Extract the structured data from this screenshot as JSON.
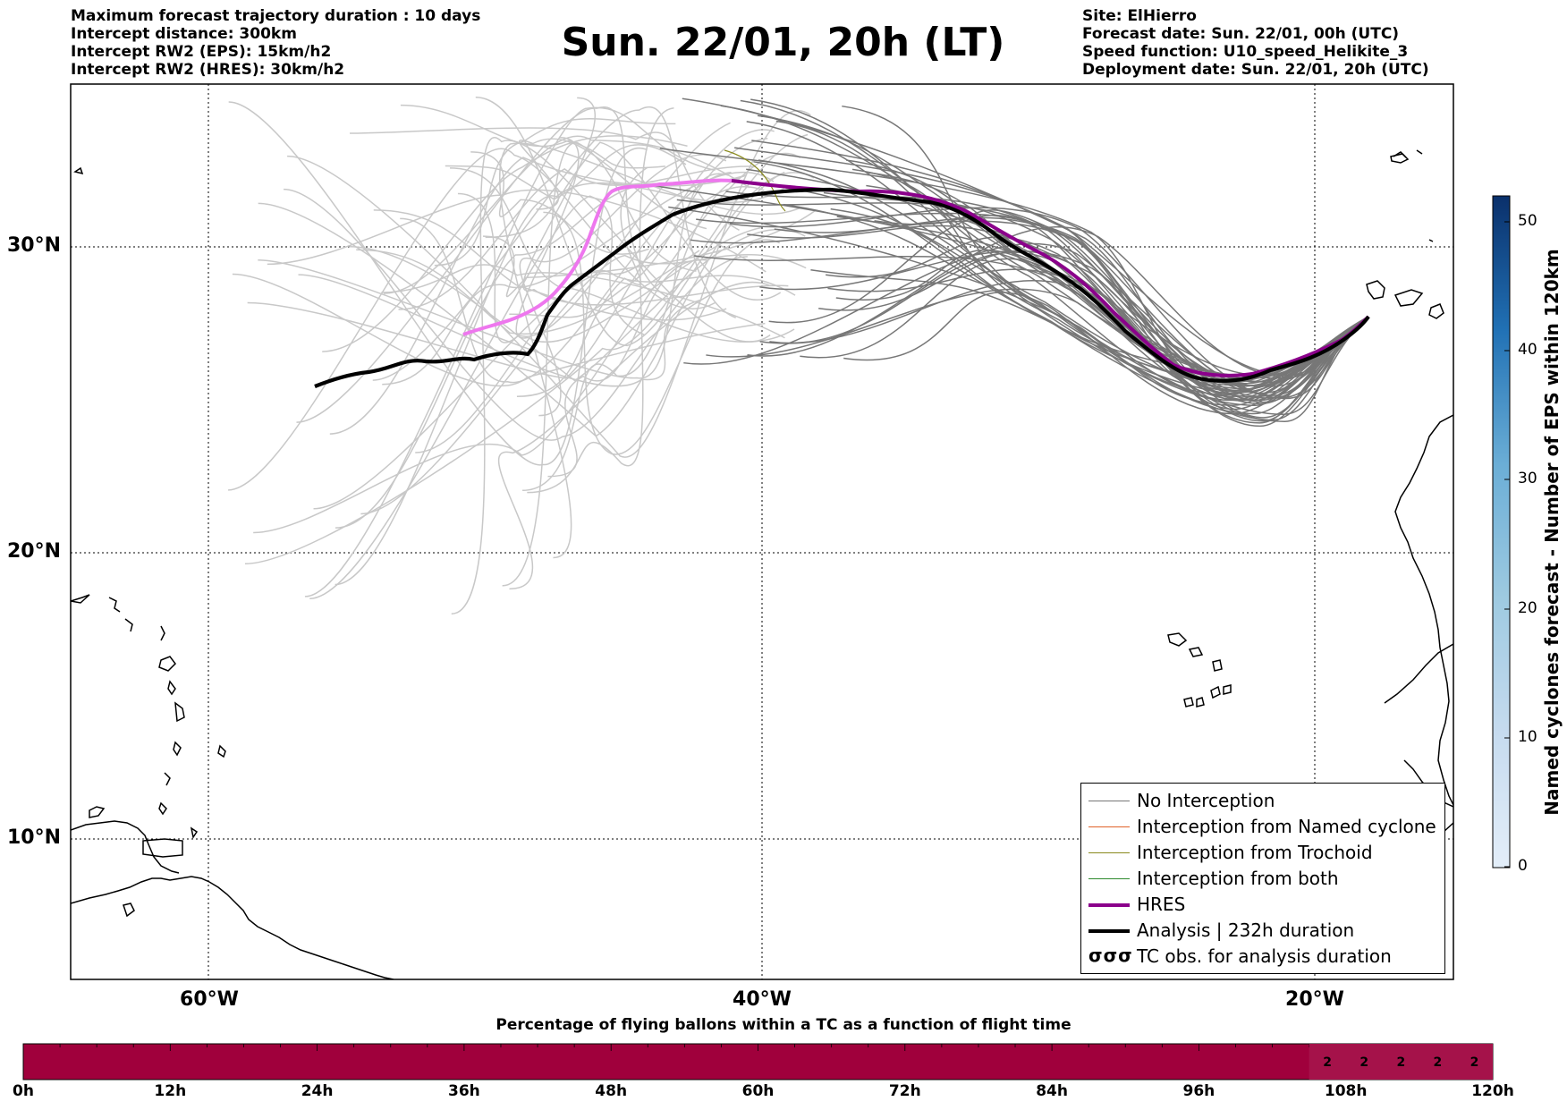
{
  "header": {
    "left_lines": [
      "Maximum forecast trajectory duration : 10 days",
      "Intercept distance: 300km",
      "Intercept RW2 (EPS):  15km/h2",
      "Intercept RW2 (HRES): 30km/h2"
    ],
    "title": "Sun. 22/01, 20h (LT)",
    "right_lines": [
      "Site: ElHierro",
      "Forecast date: Sun. 22/01, 00h (UTC)",
      "Speed function: U10_speed_Helikite_3",
      "Deployment date: Sun. 22/01, 20h (UTC)"
    ]
  },
  "map": {
    "lat_labels": [
      {
        "text": "30°N",
        "lat": 30
      },
      {
        "text": "20°N",
        "lat": 20
      },
      {
        "text": "10°N",
        "lat": 10
      }
    ],
    "lon_labels": [
      {
        "text": "60°W",
        "lon": -60
      },
      {
        "text": "40°W",
        "lon": -40
      },
      {
        "text": "20°W",
        "lon": -20
      }
    ],
    "extent": {
      "lon_min": -65,
      "lon_max": -15,
      "lat_min": 5.4,
      "lat_max": 34.7
    },
    "colors": {
      "no_interception": "#777777",
      "eps_faded": "#c8c8c8",
      "named_cyclone": "#e0622a",
      "trochoid": "#8a8a1e",
      "both": "#2e8b2e",
      "hres": "#8b008b",
      "hres_early": "#ee77ee",
      "analysis": "#000000"
    }
  },
  "legend": {
    "items": [
      {
        "label": "No Interception",
        "style": "thin-gray"
      },
      {
        "label": "Interception from Named cyclone",
        "style": "thin-orange"
      },
      {
        "label": "Interception from Trochoid",
        "style": "thin-olive"
      },
      {
        "label": "Interception from both",
        "style": "thin-green"
      },
      {
        "label": "HRES",
        "style": "thick-purple"
      },
      {
        "label": "Analysis | 232h duration",
        "style": "thick-black"
      },
      {
        "label": "TC obs. for analysis duration",
        "style": "cyclone-symbols"
      }
    ],
    "symbol_text": "σσσ"
  },
  "colorbar": {
    "label": "Named cyclones forecast - Number of EPS within 120km",
    "ticks": [
      "0",
      "10",
      "20",
      "30",
      "40",
      "50"
    ],
    "max": 52,
    "color_low": "#e3eef9",
    "color_high": "#0a306b"
  },
  "time_bar": {
    "title": "Percentage of flying ballons within a TC as a function of flight time",
    "ticks": [
      "0h",
      "12h",
      "24h",
      "36h",
      "48h",
      "60h",
      "72h",
      "84h",
      "96h",
      "108h",
      "120h"
    ],
    "segments_total": 120,
    "labeled_values": [
      "2",
      "2",
      "2",
      "2",
      "2"
    ],
    "labeled_from_hour": 105,
    "fill_main": "#a0003c",
    "fill_labeled": "#a5124a"
  }
}
